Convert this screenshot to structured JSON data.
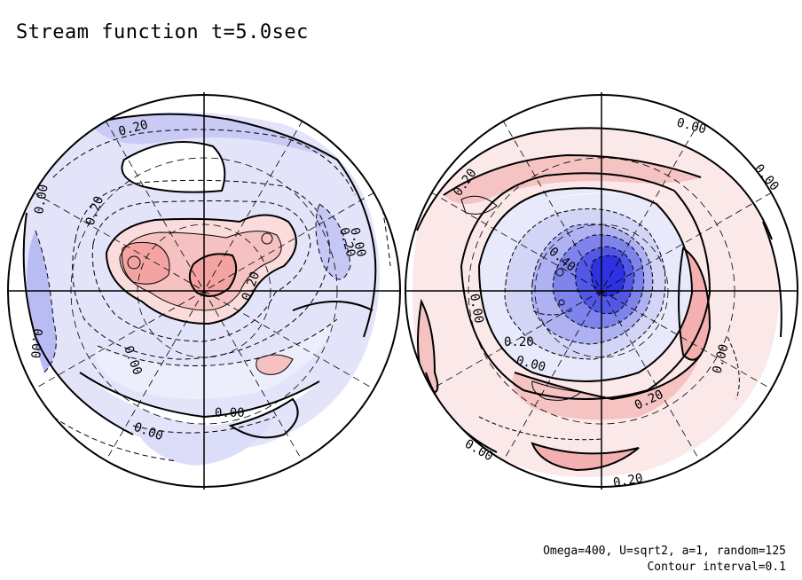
{
  "title": "Stream function t=5.0sec",
  "footnote": {
    "params": "Omega=400, U=sqrt2, a=1, random=125",
    "interval": "Contour interval=0.1"
  },
  "colors": {
    "positive": "#f4a3a3",
    "negative": "#8f93ee",
    "strong_negative": "#3236e8",
    "line": "#000000"
  },
  "left_hemisphere": {
    "contour_labels": [
      "0.20",
      "0.00",
      "0.20",
      "0.20",
      "0.00",
      "0.20",
      "0.00",
      "0.00",
      "0.00",
      "0.00"
    ]
  },
  "right_hemisphere": {
    "contour_labels": [
      "0.00",
      "0.00",
      "0.20",
      "0.40",
      "0.00",
      "0.20",
      "0.00",
      "0.00",
      "0.20",
      "0.00",
      "0.20"
    ]
  }
}
